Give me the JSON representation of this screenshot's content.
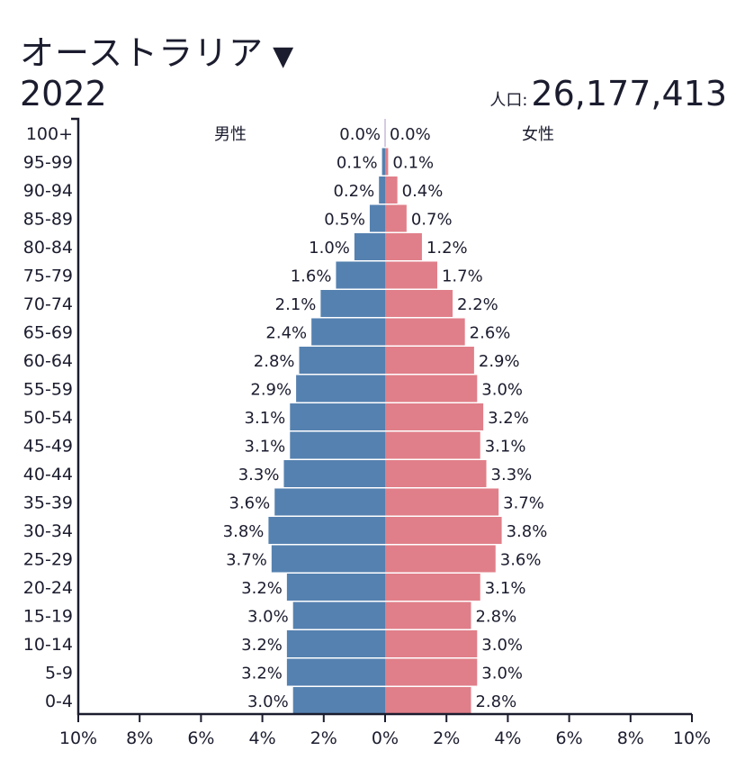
{
  "header": {
    "country": "オーストラリア",
    "dropdown_icon": "triangle-down-icon",
    "year": "2022",
    "population_label": "人口:",
    "population": "26,177,413"
  },
  "chart_data": {
    "type": "bar",
    "orientation": "horizontal-pyramid",
    "categories": [
      "100+",
      "95-99",
      "90-94",
      "85-89",
      "80-84",
      "75-79",
      "70-74",
      "65-69",
      "60-64",
      "55-59",
      "50-54",
      "45-49",
      "40-44",
      "35-39",
      "30-34",
      "25-29",
      "20-24",
      "15-19",
      "10-14",
      "5-9",
      "0-4"
    ],
    "series": [
      {
        "name": "男性",
        "color": "#5581b0",
        "values": [
          0.0,
          0.1,
          0.2,
          0.5,
          1.0,
          1.6,
          2.1,
          2.4,
          2.8,
          2.9,
          3.1,
          3.1,
          3.3,
          3.6,
          3.8,
          3.7,
          3.2,
          3.0,
          3.2,
          3.2,
          3.0
        ]
      },
      {
        "name": "女性",
        "color": "#e07f89",
        "values": [
          0.0,
          0.1,
          0.4,
          0.7,
          1.2,
          1.7,
          2.2,
          2.6,
          2.9,
          3.0,
          3.2,
          3.1,
          3.3,
          3.7,
          3.8,
          3.6,
          3.1,
          2.8,
          3.0,
          3.0,
          2.8
        ]
      }
    ],
    "xlim": [
      -10,
      10
    ],
    "xticks": [
      "10%",
      "8%",
      "6%",
      "4%",
      "2%",
      "0%",
      "2%",
      "4%",
      "6%",
      "8%",
      "10%"
    ],
    "grid": false
  }
}
